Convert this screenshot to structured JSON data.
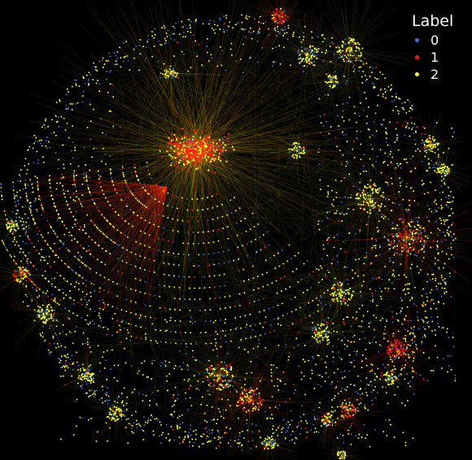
{
  "legend": {
    "title": "Label",
    "entries": [
      {
        "label": "0",
        "color": "#3a6fd8"
      },
      {
        "label": "1",
        "color": "#ff1a0a"
      },
      {
        "label": "2",
        "color": "#ffff1a"
      }
    ]
  }
}
